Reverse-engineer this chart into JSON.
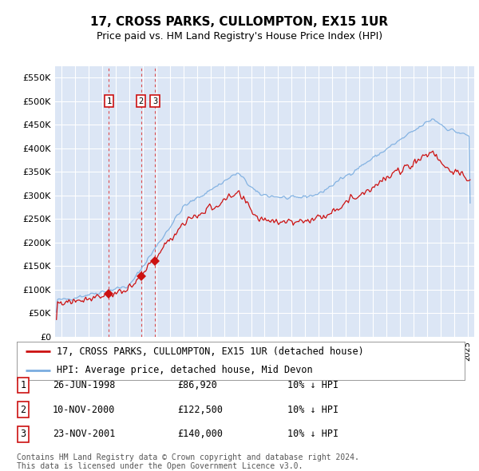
{
  "title": "17, CROSS PARKS, CULLOMPTON, EX15 1UR",
  "subtitle": "Price paid vs. HM Land Registry's House Price Index (HPI)",
  "legend_line1": "17, CROSS PARKS, CULLOMPTON, EX15 1UR (detached house)",
  "legend_line2": "HPI: Average price, detached house, Mid Devon",
  "transactions": [
    {
      "num": 1,
      "date": "26-JUN-1998",
      "price": 86920,
      "note": "10% ↓ HPI",
      "x_year": 1998.48
    },
    {
      "num": 2,
      "date": "10-NOV-2000",
      "price": 122500,
      "note": "10% ↓ HPI",
      "x_year": 2000.86
    },
    {
      "num": 3,
      "date": "23-NOV-2001",
      "price": 140000,
      "note": "10% ↓ HPI",
      "x_year": 2001.89
    }
  ],
  "hpi_color": "#7aade0",
  "price_color": "#cc1111",
  "vline_color": "#dd3333",
  "background_plot": "#dce6f5",
  "background_fig": "#ffffff",
  "grid_color": "#ffffff",
  "ylim": [
    0,
    575000
  ],
  "yticks": [
    0,
    50000,
    100000,
    150000,
    200000,
    250000,
    300000,
    350000,
    400000,
    450000,
    500000,
    550000
  ],
  "xlim_start": 1994.5,
  "xlim_end": 2025.5,
  "footer1": "Contains HM Land Registry data © Crown copyright and database right 2024.",
  "footer2": "This data is licensed under the Open Government Licence v3.0."
}
